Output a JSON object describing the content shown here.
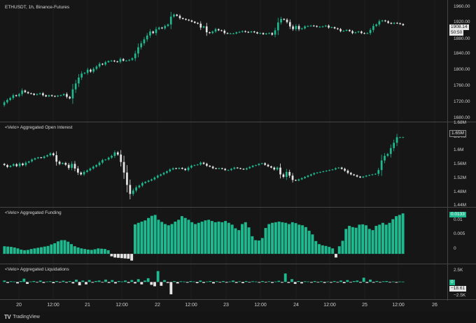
{
  "colors": {
    "background": "#161616",
    "up": "#1fb98f",
    "down": "#e5e5e5",
    "grid": "#262626",
    "separator": "#454545"
  },
  "panes": {
    "price": {
      "title": "ETHUSDT, 1h, Binance-Futures",
      "y_ticks": [
        "1960.00",
        "1920.00",
        "1880.00",
        "1840.00",
        "1800.00",
        "1760.00",
        "1720.00",
        "1680.00"
      ],
      "last_price": "1908.14",
      "countdown": "50:50"
    },
    "open_interest": {
      "title": "<Velo> Aggregated Open Interest",
      "y_ticks": [
        "1.68M",
        "1.64M",
        "1.6M",
        "1.56M",
        "1.52M",
        "1.48M",
        "1.44M"
      ],
      "last_value": "1.65M"
    },
    "funding": {
      "title": "<Velo> Aggregated Funding",
      "y_ticks": [
        "0.01",
        "0.005",
        "0"
      ],
      "last_value": "0.0133"
    },
    "liquidations": {
      "title": "<Velo> Aggregated Liquidations",
      "y_ticks": [
        "2.5K",
        "0",
        "−2.5K"
      ],
      "last_value_top": "0",
      "last_value_bottom": "−18.61"
    }
  },
  "x_axis": {
    "ticks": [
      "20",
      "12:00",
      "21",
      "12:00",
      "22",
      "12:00",
      "23",
      "12:00",
      "24",
      "12:00",
      "25",
      "12:00",
      "26"
    ]
  },
  "branding": {
    "logo_text": "TradingView",
    "logo_icon": "tradingview-logo-icon"
  },
  "chart_data": [
    {
      "type": "candlestick",
      "title": "ETHUSDT, 1h, Binance-Futures",
      "ylim": [
        1670,
        1965
      ],
      "close": [
        1712,
        1718,
        1723,
        1730,
        1728,
        1733,
        1742,
        1738,
        1735,
        1734,
        1731,
        1733,
        1735,
        1730,
        1727,
        1730,
        1728,
        1727,
        1729,
        1730,
        1733,
        1726,
        1722,
        1745,
        1760,
        1775,
        1785,
        1787,
        1795,
        1790,
        1797,
        1803,
        1810,
        1808,
        1814,
        1817,
        1818,
        1816,
        1815,
        1822,
        1818,
        1818,
        1820,
        1824,
        1836,
        1852,
        1862,
        1872,
        1882,
        1892,
        1888,
        1898,
        1902,
        1900,
        1906,
        1910,
        1930,
        1935,
        1932,
        1926,
        1924,
        1922,
        1920,
        1917,
        1914,
        1912,
        1902,
        1905,
        1890,
        1888,
        1892,
        1898,
        1895,
        1894,
        1888,
        1887,
        1887,
        1887,
        1890,
        1891,
        1893,
        1891,
        1890,
        1892,
        1890,
        1887,
        1888,
        1885,
        1887,
        1888,
        1884,
        1895,
        1915,
        1924,
        1922,
        1916,
        1905,
        1898,
        1906,
        1898,
        1900,
        1905,
        1906,
        1907,
        1906,
        1904,
        1904,
        1905,
        1907,
        1902,
        1903,
        1900,
        1898,
        1893,
        1894,
        1896,
        1893,
        1888,
        1890,
        1892,
        1888,
        1887,
        1888,
        1896,
        1906,
        1910,
        1918,
        1920,
        1918,
        1914,
        1912,
        1914,
        1913,
        1911,
        1908
      ],
      "open": [
        1705,
        1712,
        1718,
        1723,
        1730,
        1728,
        1733,
        1742,
        1738,
        1735,
        1734,
        1731,
        1733,
        1735,
        1730,
        1727,
        1730,
        1728,
        1727,
        1729,
        1730,
        1733,
        1726,
        1722,
        1745,
        1760,
        1775,
        1785,
        1787,
        1795,
        1790,
        1797,
        1803,
        1810,
        1808,
        1814,
        1817,
        1818,
        1816,
        1815,
        1822,
        1818,
        1818,
        1820,
        1824,
        1836,
        1852,
        1862,
        1872,
        1882,
        1892,
        1888,
        1898,
        1902,
        1900,
        1906,
        1910,
        1930,
        1935,
        1932,
        1926,
        1924,
        1922,
        1920,
        1917,
        1914,
        1912,
        1902,
        1905,
        1890,
        1888,
        1892,
        1898,
        1895,
        1894,
        1888,
        1887,
        1887,
        1887,
        1890,
        1891,
        1893,
        1891,
        1890,
        1892,
        1890,
        1887,
        1888,
        1885,
        1887,
        1888,
        1884,
        1895,
        1915,
        1924,
        1922,
        1916,
        1905,
        1898,
        1906,
        1898,
        1900,
        1905,
        1906,
        1907,
        1906,
        1904,
        1904,
        1905,
        1907,
        1902,
        1903,
        1900,
        1898,
        1893,
        1894,
        1896,
        1893,
        1888,
        1890,
        1892,
        1888,
        1887,
        1888,
        1896,
        1906,
        1910,
        1918,
        1920,
        1918,
        1914,
        1912,
        1914,
        1913,
        1911
      ]
    },
    {
      "type": "candlestick",
      "title": "<Velo> Aggregated Open Interest",
      "ylim": [
        1.435,
        1.69
      ],
      "unit": "M",
      "close": [
        1.561,
        1.555,
        1.559,
        1.564,
        1.558,
        1.566,
        1.561,
        1.569,
        1.573,
        1.579,
        1.583,
        1.586,
        1.584,
        1.589,
        1.593,
        1.599,
        1.593,
        1.572,
        1.565,
        1.568,
        1.562,
        1.552,
        1.565,
        1.55,
        1.537,
        1.531,
        1.539,
        1.544,
        1.55,
        1.556,
        1.561,
        1.569,
        1.577,
        1.579,
        1.585,
        1.591,
        1.602,
        1.595,
        1.571,
        1.537,
        1.497,
        1.468,
        1.479,
        1.489,
        1.495,
        1.503,
        1.507,
        1.511,
        1.515,
        1.521,
        1.527,
        1.531,
        1.536,
        1.541,
        1.547,
        1.551,
        1.549,
        1.552,
        1.549,
        1.545,
        1.553,
        1.559,
        1.561,
        1.563,
        1.569,
        1.565,
        1.559,
        1.556,
        1.551,
        1.549,
        1.551,
        1.549,
        1.545,
        1.545,
        1.549,
        1.553,
        1.551,
        1.549,
        1.547,
        1.551,
        1.555,
        1.559,
        1.561,
        1.565,
        1.567,
        1.562,
        1.557,
        1.553,
        1.547,
        1.553,
        1.531,
        1.523,
        1.539,
        1.527,
        1.513,
        1.511,
        1.515,
        1.519,
        1.523,
        1.527,
        1.531,
        1.535,
        1.537,
        1.539,
        1.541,
        1.543,
        1.545,
        1.547,
        1.551,
        1.553,
        1.549,
        1.543,
        1.536,
        1.531,
        1.528,
        1.524,
        1.521,
        1.524,
        1.527,
        1.529,
        1.531,
        1.533,
        1.545,
        1.576,
        1.591,
        1.597,
        1.616,
        1.633,
        1.651,
        1.651,
        1.651
      ],
      "open": [
        1.565,
        1.561,
        1.555,
        1.559,
        1.564,
        1.558,
        1.566,
        1.561,
        1.569,
        1.573,
        1.579,
        1.583,
        1.586,
        1.584,
        1.589,
        1.593,
        1.599,
        1.593,
        1.572,
        1.565,
        1.568,
        1.562,
        1.552,
        1.565,
        1.55,
        1.537,
        1.531,
        1.539,
        1.544,
        1.55,
        1.556,
        1.561,
        1.569,
        1.577,
        1.579,
        1.585,
        1.591,
        1.602,
        1.595,
        1.571,
        1.537,
        1.497,
        1.468,
        1.479,
        1.489,
        1.495,
        1.503,
        1.507,
        1.511,
        1.515,
        1.521,
        1.527,
        1.531,
        1.536,
        1.541,
        1.547,
        1.551,
        1.549,
        1.552,
        1.549,
        1.545,
        1.553,
        1.559,
        1.561,
        1.563,
        1.569,
        1.565,
        1.559,
        1.556,
        1.551,
        1.549,
        1.551,
        1.549,
        1.545,
        1.545,
        1.549,
        1.553,
        1.551,
        1.549,
        1.547,
        1.551,
        1.555,
        1.559,
        1.561,
        1.565,
        1.567,
        1.562,
        1.557,
        1.553,
        1.547,
        1.553,
        1.531,
        1.523,
        1.539,
        1.527,
        1.513,
        1.511,
        1.515,
        1.519,
        1.523,
        1.527,
        1.531,
        1.535,
        1.537,
        1.539,
        1.541,
        1.543,
        1.545,
        1.547,
        1.551,
        1.553,
        1.549,
        1.543,
        1.536,
        1.531,
        1.528,
        1.524,
        1.521,
        1.524,
        1.527,
        1.529,
        1.531,
        1.533,
        1.545,
        1.576,
        1.591,
        1.597,
        1.616,
        1.633,
        1.651,
        1.651
      ]
    },
    {
      "type": "bar",
      "title": "<Velo> Aggregated Funding",
      "ylim": [
        -0.0025,
        0.0145
      ],
      "values": [
        0.0025,
        0.0024,
        0.0023,
        0.0021,
        0.0018,
        0.0014,
        0.0012,
        0.0013,
        0.0016,
        0.0018,
        0.002,
        0.0022,
        0.0024,
        0.0026,
        0.0031,
        0.0035,
        0.0041,
        0.0045,
        0.0045,
        0.004,
        0.0032,
        0.0025,
        0.0021,
        0.0018,
        0.0016,
        0.0014,
        0.0013,
        0.0015,
        0.0018,
        0.0017,
        0.0016,
        0.0012,
        -0.0008,
        -0.0012,
        -0.0013,
        -0.0014,
        -0.0015,
        -0.0016,
        -0.0022,
        0.0097,
        0.0102,
        0.0106,
        0.011,
        0.0118,
        0.0125,
        0.0128,
        0.0112,
        0.0105,
        0.0098,
        0.0094,
        0.0098,
        0.0106,
        0.0112,
        0.0124,
        0.0118,
        0.0112,
        0.0104,
        0.0098,
        0.0102,
        0.0106,
        0.011,
        0.0112,
        0.0108,
        0.0104,
        0.0106,
        0.0104,
        0.0108,
        0.0102,
        0.0096,
        0.0084,
        0.0078,
        0.0098,
        0.0104,
        0.0087,
        0.0058,
        0.0045,
        0.0044,
        0.0052,
        0.0085,
        0.0098,
        0.0102,
        0.0104,
        0.0106,
        0.0104,
        0.0102,
        0.0098,
        0.0104,
        0.0101,
        0.0096,
        0.0094,
        0.0088,
        0.0076,
        0.0064,
        0.0042,
        0.0032,
        0.0028,
        0.0026,
        0.0023,
        0.0018,
        -0.0012,
        0.0025,
        0.0043,
        0.0082,
        0.0092,
        0.0088,
        0.0086,
        0.0096,
        0.0097,
        0.0094,
        0.0082,
        0.0078,
        0.0092,
        0.0096,
        0.0102,
        0.0096,
        0.0102,
        0.0114,
        0.0124,
        0.0128,
        0.0133
      ]
    },
    {
      "type": "bar",
      "title": "<Velo> Aggregated Liquidations",
      "ylim": [
        -3200,
        3300
      ],
      "values": [
        300,
        -200,
        150,
        100,
        -300,
        200,
        700,
        -400,
        100,
        200,
        -100,
        300,
        -200,
        100,
        150,
        -250,
        200,
        -100,
        250,
        -150,
        200,
        -300,
        500,
        -700,
        300,
        -500,
        400,
        -150,
        200,
        300,
        -100,
        500,
        -200,
        400,
        -300,
        200,
        100,
        300,
        -200,
        400,
        -300,
        600,
        -500,
        300,
        800,
        -600,
        -900,
        2300,
        -800,
        400,
        -200,
        -2600,
        200,
        -300,
        150,
        100,
        -150,
        200,
        100,
        -250,
        300,
        -200,
        100,
        200,
        -300,
        150,
        -100,
        200,
        -150,
        100,
        300,
        -200,
        150,
        -250,
        200,
        -100,
        150,
        100,
        -150,
        200,
        -100,
        150,
        -200,
        100,
        250,
        -150,
        1800,
        -200,
        600,
        -400,
        200,
        -300,
        150,
        100,
        -150,
        200,
        -100,
        150,
        -200,
        100,
        -150,
        200,
        -100,
        300,
        -250,
        400,
        -100,
        200,
        300,
        -150,
        900,
        -200,
        500,
        -150,
        200,
        -100,
        150,
        200,
        -100,
        100,
        -150,
        100,
        80
      ]
    }
  ]
}
